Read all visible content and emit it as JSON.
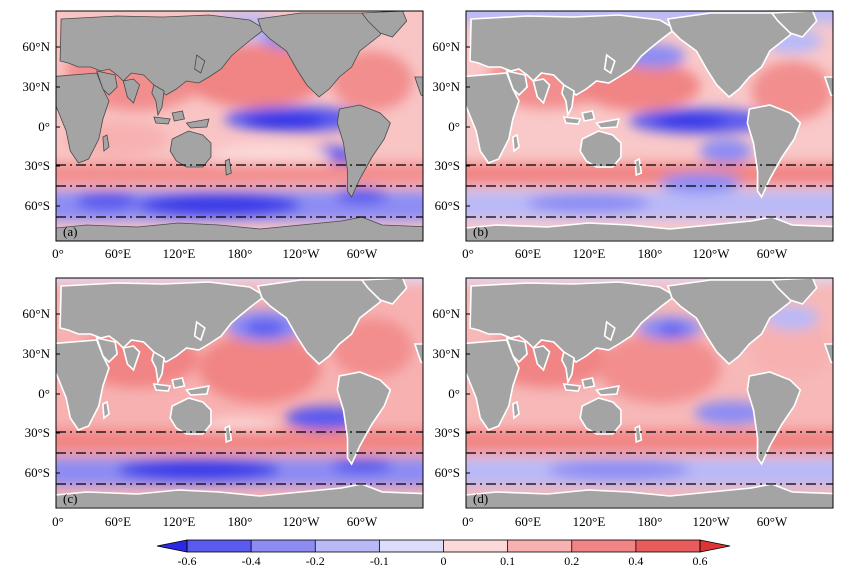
{
  "figure": {
    "panels": [
      {
        "label": "(a)",
        "land_outline": "#4a4a4a"
      },
      {
        "label": "(b)",
        "land_outline": "#ffffff"
      },
      {
        "label": "(c)",
        "land_outline": "#ffffff"
      },
      {
        "label": "(d)",
        "land_outline": "#ffffff"
      }
    ],
    "lat_ticks": [
      "60°N",
      "30°N",
      "0°",
      "30°S",
      "60°S"
    ],
    "lon_ticks": [
      "0°",
      "60°E",
      "120°E",
      "180°",
      "120°W",
      "60°W"
    ],
    "reference_latitudes": [
      "29°S",
      "44°S",
      "69°S"
    ],
    "colorbar": {
      "levels": [
        "-0.6",
        "-0.4",
        "-0.2",
        "-0.1",
        "0",
        "0.1",
        "0.2",
        "0.4",
        "0.6"
      ],
      "colors": [
        "#2a2ae6",
        "#5a5aef",
        "#8c8cf4",
        "#b9b9f8",
        "#dcdcfb",
        "#fbd9d9",
        "#f7b1b1",
        "#f18484",
        "#e85c5c",
        "#de3434"
      ]
    },
    "land_color": "#a4a4a4",
    "ocean_base_color": "#f9c4c4"
  }
}
